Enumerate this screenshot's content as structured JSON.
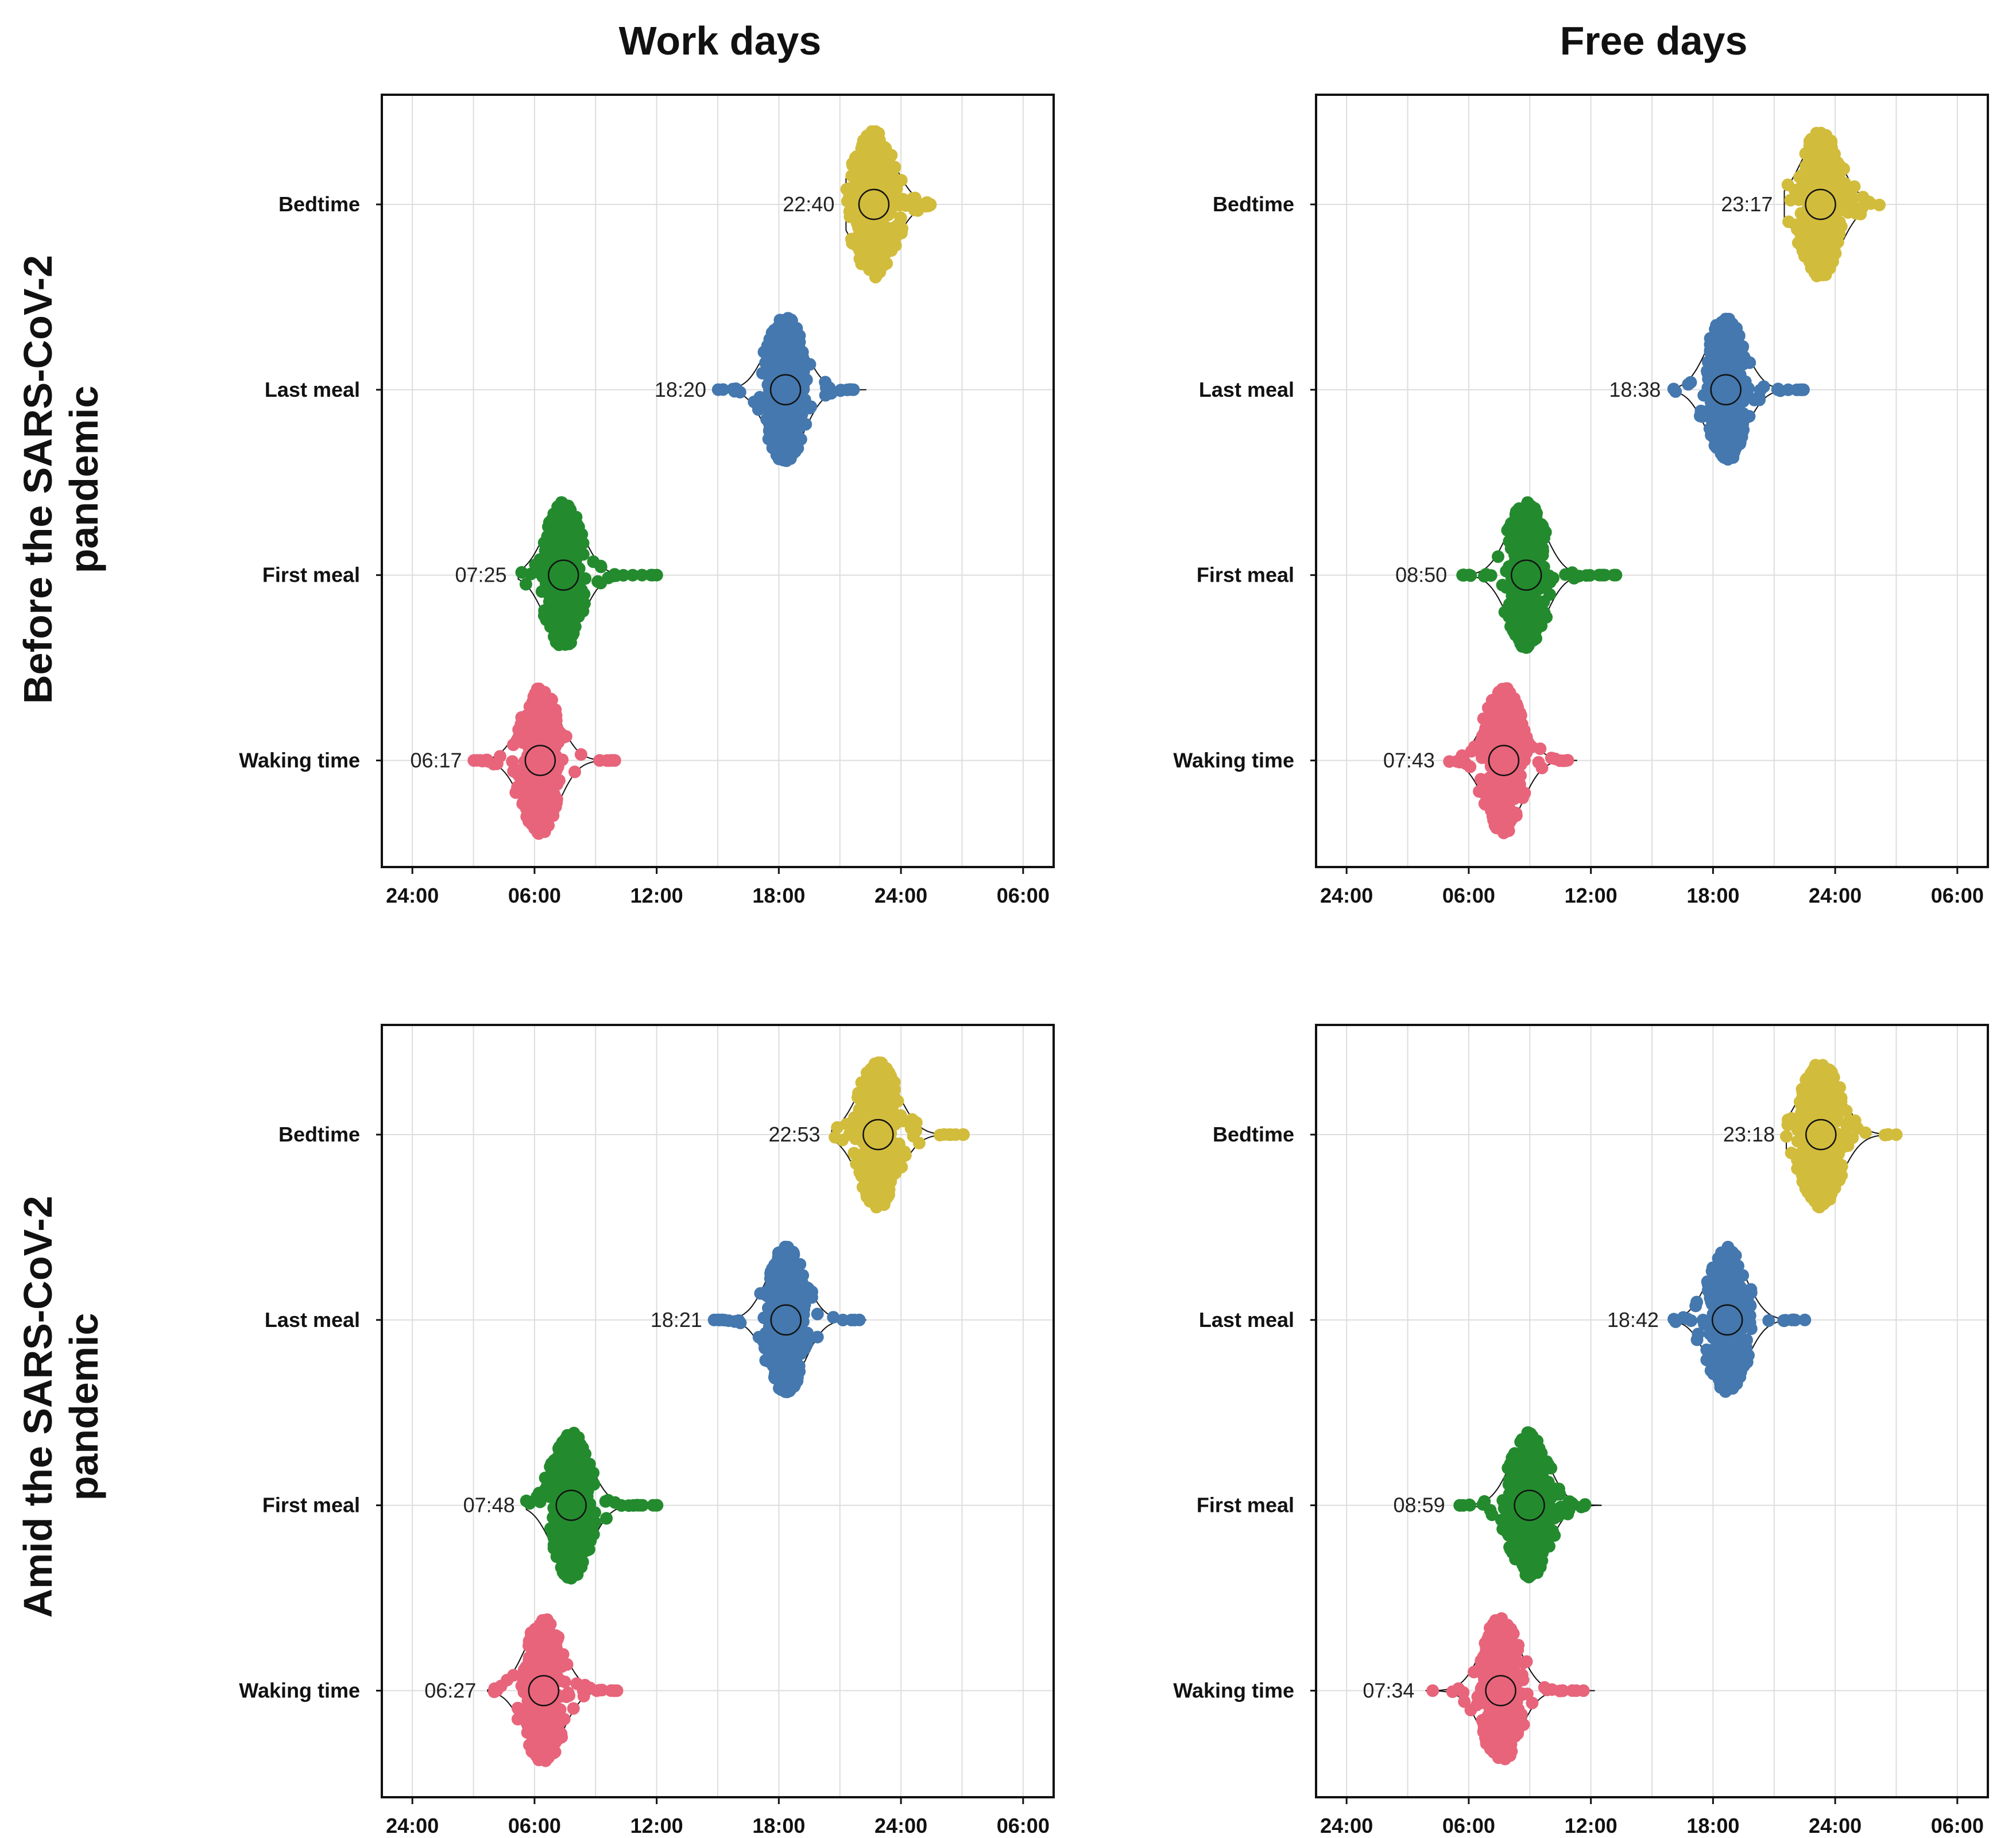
{
  "column_titles": [
    "Work days",
    "Free days"
  ],
  "row_titles": [
    [
      "Before the SARS-CoV-2",
      "pandemic"
    ],
    [
      "Amid the SARS-CoV-2",
      "pandemic"
    ]
  ],
  "colors": {
    "Waking time": "#E8647A",
    "First meal": "#238B2E",
    "Last meal": "#4478AE",
    "Bedtime": "#D2BC3C",
    "axis": "#111111",
    "grid": "#DDDDDD"
  },
  "chart_data": [
    {
      "type": "scatter",
      "subtype": "beeswarm-violin",
      "panel": "Before the SARS-CoV-2 pandemic / Work days",
      "categories": [
        "Bedtime",
        "Last meal",
        "First meal",
        "Waking time"
      ],
      "x_tick_labels": [
        "24:00",
        "06:00",
        "12:00",
        "18:00",
        "24:00",
        "06:00"
      ],
      "x_ticks_hours": [
        0,
        6,
        12,
        18,
        24,
        30
      ],
      "xlim_hours": [
        -1.5,
        31.5
      ],
      "series": [
        {
          "name": "Bedtime",
          "mean_label": "22:40",
          "mean_hours": 22.67,
          "range_hours": [
            21.3,
            25.6
          ],
          "spread": 0.9
        },
        {
          "name": "Last meal",
          "mean_label": "18:20",
          "mean_hours": 18.33,
          "range_hours": [
            15.0,
            22.3
          ],
          "spread": 0.85
        },
        {
          "name": "First meal",
          "mean_label": "07:25",
          "mean_hours": 7.42,
          "range_hours": [
            5.2,
            12.2
          ],
          "spread": 0.85
        },
        {
          "name": "Waking time",
          "mean_label": "06:17",
          "mean_hours": 6.28,
          "range_hours": [
            3.0,
            10.2
          ],
          "spread": 0.85
        }
      ]
    },
    {
      "type": "scatter",
      "subtype": "beeswarm-violin",
      "panel": "Before the SARS-CoV-2 pandemic / Free days",
      "categories": [
        "Bedtime",
        "Last meal",
        "First meal",
        "Waking time"
      ],
      "x_tick_labels": [
        "24:00",
        "06:00",
        "12:00",
        "18:00",
        "24:00",
        "06:00"
      ],
      "x_ticks_hours": [
        0,
        6,
        12,
        18,
        24,
        30
      ],
      "xlim_hours": [
        -1.5,
        31.5
      ],
      "series": [
        {
          "name": "Bedtime",
          "mean_label": "23:17",
          "mean_hours": 23.28,
          "range_hours": [
            21.5,
            26.4
          ],
          "spread": 0.9
        },
        {
          "name": "Last meal",
          "mean_label": "18:38",
          "mean_hours": 18.63,
          "range_hours": [
            16.0,
            22.6
          ],
          "spread": 0.85
        },
        {
          "name": "First meal",
          "mean_label": "08:50",
          "mean_hours": 8.83,
          "range_hours": [
            5.5,
            13.3
          ],
          "spread": 0.85
        },
        {
          "name": "Waking time",
          "mean_label": "07:43",
          "mean_hours": 7.72,
          "range_hours": [
            4.9,
            11.3
          ],
          "spread": 0.85
        }
      ]
    },
    {
      "type": "scatter",
      "subtype": "beeswarm-violin",
      "panel": "Amid the SARS-CoV-2 pandemic / Work days",
      "categories": [
        "Bedtime",
        "Last meal",
        "First meal",
        "Waking time"
      ],
      "x_tick_labels": [
        "24:00",
        "06:00",
        "12:00",
        "18:00",
        "24:00",
        "06:00"
      ],
      "x_ticks_hours": [
        0,
        6,
        12,
        18,
        24,
        30
      ],
      "xlim_hours": [
        -1.5,
        31.5
      ],
      "series": [
        {
          "name": "Bedtime",
          "mean_label": "22:53",
          "mean_hours": 22.88,
          "range_hours": [
            20.6,
            27.3
          ],
          "spread": 0.9
        },
        {
          "name": "Last meal",
          "mean_label": "18:21",
          "mean_hours": 18.35,
          "range_hours": [
            14.8,
            22.3
          ],
          "spread": 0.85
        },
        {
          "name": "First meal",
          "mean_label": "07:48",
          "mean_hours": 7.8,
          "range_hours": [
            5.6,
            12.3
          ],
          "spread": 0.85
        },
        {
          "name": "Waking time",
          "mean_label": "06:27",
          "mean_hours": 6.45,
          "range_hours": [
            3.7,
            10.3
          ],
          "spread": 0.85
        }
      ]
    },
    {
      "type": "scatter",
      "subtype": "beeswarm-violin",
      "panel": "Amid the SARS-CoV-2 pandemic / Free days",
      "categories": [
        "Bedtime",
        "Last meal",
        "First meal",
        "Waking time"
      ],
      "x_tick_labels": [
        "24:00",
        "06:00",
        "12:00",
        "18:00",
        "24:00",
        "06:00"
      ],
      "x_ticks_hours": [
        0,
        6,
        12,
        18,
        24,
        30
      ],
      "xlim_hours": [
        -1.5,
        31.5
      ],
      "series": [
        {
          "name": "Bedtime",
          "mean_label": "23:18",
          "mean_hours": 23.3,
          "range_hours": [
            21.6,
            27.1
          ],
          "spread": 0.9
        },
        {
          "name": "Last meal",
          "mean_label": "18:42",
          "mean_hours": 18.7,
          "range_hours": [
            15.9,
            22.6
          ],
          "spread": 0.85
        },
        {
          "name": "First meal",
          "mean_label": "08:59",
          "mean_hours": 8.98,
          "range_hours": [
            5.4,
            12.5
          ],
          "spread": 0.85
        },
        {
          "name": "Waking time",
          "mean_label": "07:34",
          "mean_hours": 7.57,
          "range_hours": [
            3.9,
            12.2
          ],
          "spread": 0.85
        }
      ]
    }
  ]
}
